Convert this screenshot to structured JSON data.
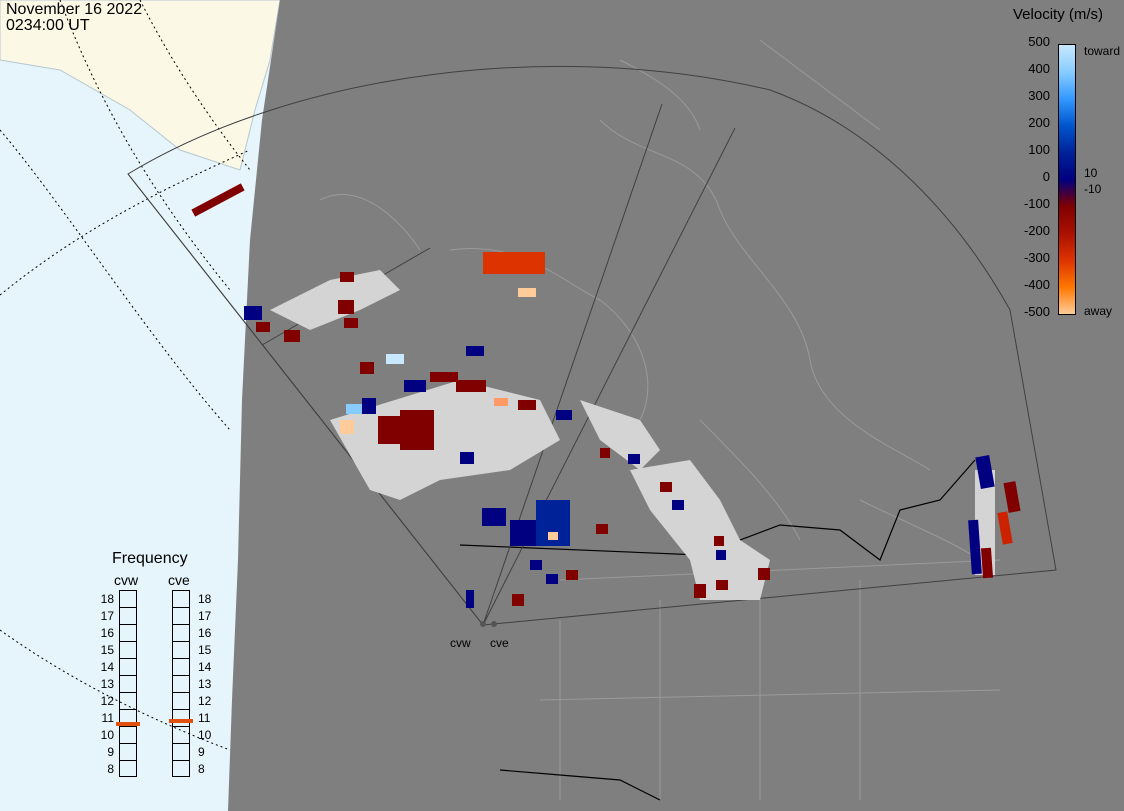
{
  "header": {
    "date": "November 16 2022",
    "time": "0234:00 UT"
  },
  "colorscale": {
    "title": "Velocity (m/s)",
    "ticks": [
      "500",
      "400",
      "300",
      "200",
      "100",
      "0",
      "-100",
      "-200",
      "-300",
      "-400",
      "-500"
    ],
    "inner_ticks": [
      "10",
      "-10"
    ],
    "toward_label": "toward",
    "away_label": "away",
    "colors": [
      "#c8e8ff",
      "#88ccff",
      "#3399ff",
      "#0055cc",
      "#002299",
      "#000080",
      "#800000",
      "#aa1100",
      "#dd3300",
      "#ff7700",
      "#ffcc99"
    ]
  },
  "frequency": {
    "title": "Frequency",
    "levels": [
      "18",
      "17",
      "16",
      "15",
      "14",
      "13",
      "12",
      "11",
      "10",
      "9",
      "8"
    ],
    "radars": [
      {
        "name": "cvw",
        "value_mhz": 10.6
      },
      {
        "name": "cve",
        "value_mhz": 10.8
      }
    ]
  },
  "sites": [
    {
      "name": "cvw"
    },
    {
      "name": "cve"
    }
  ],
  "map": {
    "ocean_color": "#e6f4fb",
    "land_color": "#7f7f7f",
    "night_color": "#7f7f7f",
    "ice_color": "#fbf8e6",
    "boundary_color": "#000000",
    "fov_color": "#404040"
  }
}
